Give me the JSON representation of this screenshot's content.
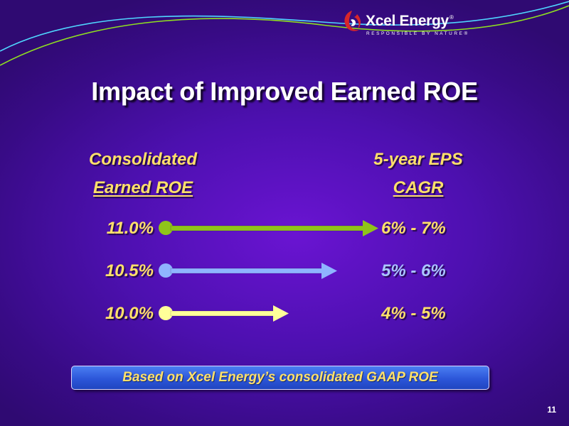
{
  "logo": {
    "brand": "Xcel Energy",
    "registered": "®",
    "tagline": "RESPONSIBLE BY NATURE®"
  },
  "title": "Impact of Improved Earned ROE",
  "left_header": {
    "line1": "Consolidated",
    "line2": "Earned ROE"
  },
  "right_header": {
    "line1": "5-year EPS",
    "line2": "CAGR"
  },
  "rows": [
    {
      "roe": "11.0%",
      "eps": "6% - 7%",
      "color": "#8fc41a",
      "eps_color": "#ffe06a"
    },
    {
      "roe": "10.5%",
      "eps": "5% - 6%",
      "color": "#8fb4ff",
      "eps_color": "#aac6ff"
    },
    {
      "roe": "10.0%",
      "eps": "4% - 5%",
      "color": "#ffff99",
      "eps_color": "#ffe06a"
    }
  ],
  "footnote": "Based on Xcel Energy’s consolidated GAAP ROE",
  "page_number": "11"
}
